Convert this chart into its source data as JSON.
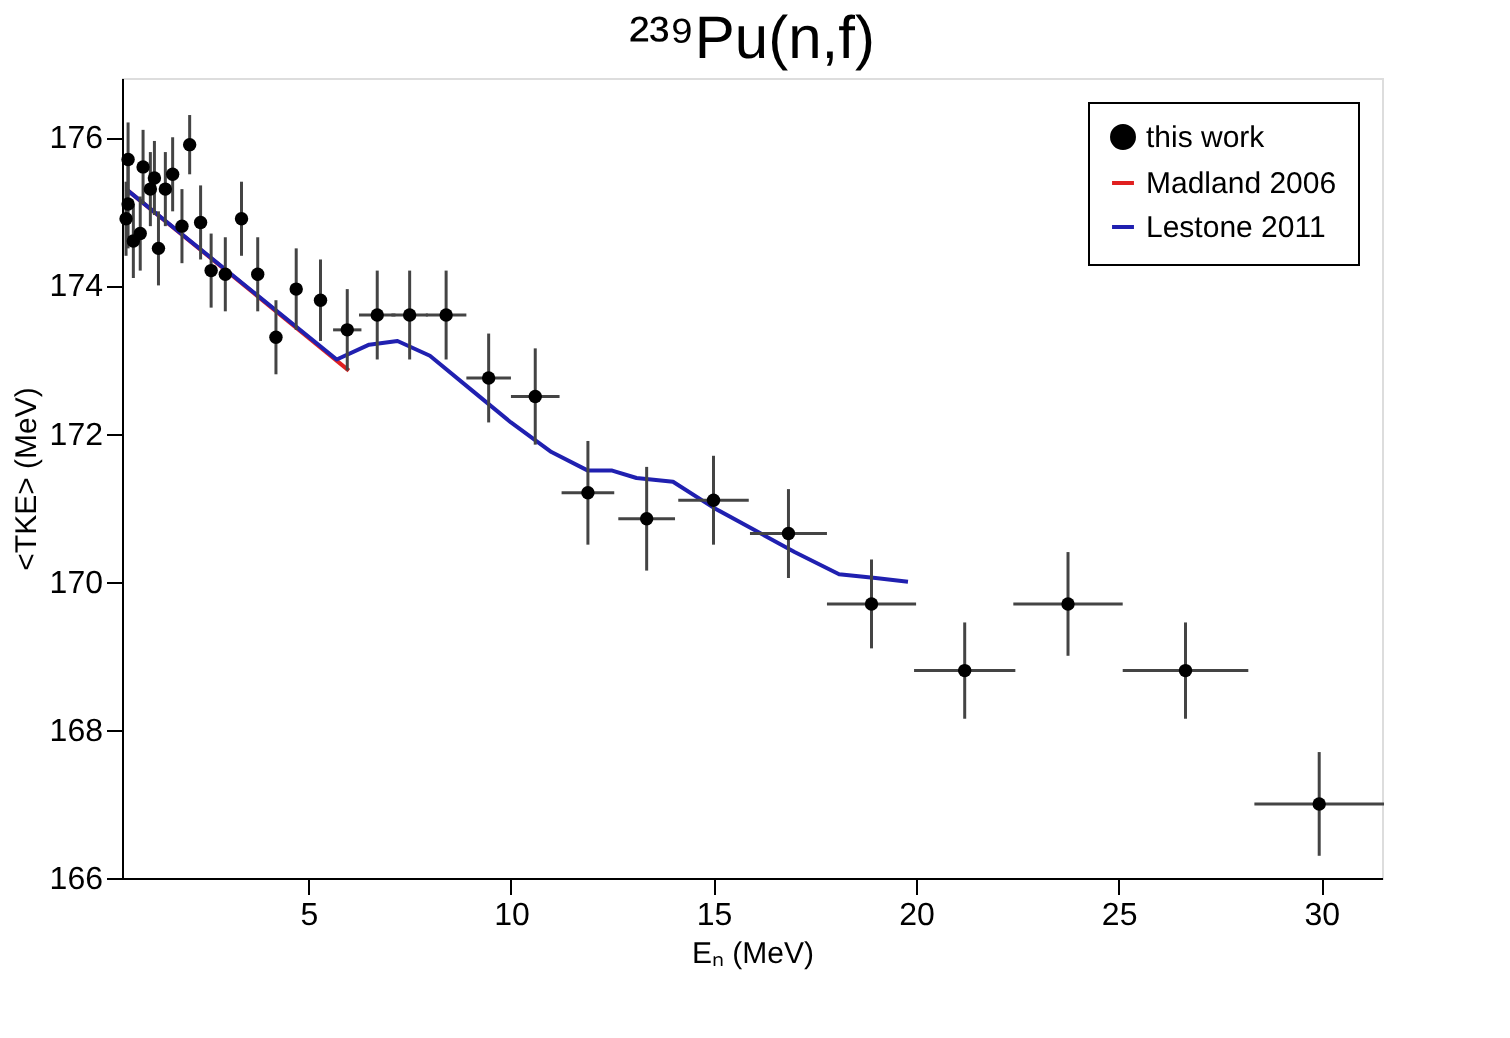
{
  "chart_data": {
    "type": "scatter",
    "title": "²³⁹Pu(n,f)",
    "xlabel": "Eₙ (MeV)",
    "ylabel": "<TKE> (MeV)",
    "xlim": [
      0.4,
      31.5
    ],
    "ylim": [
      166,
      176.8
    ],
    "xticks": [
      5,
      10,
      15,
      20,
      25,
      30
    ],
    "yticks": [
      166,
      168,
      170,
      172,
      174,
      176
    ],
    "grid": false,
    "legend": "top right",
    "series": [
      {
        "name": "this work",
        "marker": "circle",
        "color": "#000000",
        "x": [
          0.5,
          0.55,
          0.55,
          0.68,
          0.85,
          0.92,
          1.1,
          1.2,
          1.3,
          1.47,
          1.65,
          1.88,
          2.07,
          2.34,
          2.6,
          2.95,
          3.35,
          3.75,
          4.2,
          4.7,
          5.3,
          5.96,
          6.7,
          7.5,
          8.4,
          9.45,
          10.6,
          11.9,
          13.35,
          15.0,
          16.85,
          18.9,
          21.2,
          23.75,
          26.65,
          29.95
        ],
        "values": [
          174.9,
          175.7,
          175.1,
          174.6,
          174.7,
          175.6,
          175.3,
          175.45,
          174.5,
          175.3,
          175.5,
          174.8,
          175.9,
          174.85,
          174.2,
          174.15,
          174.9,
          174.15,
          173.3,
          173.95,
          173.8,
          173.4,
          173.6,
          173.6,
          173.6,
          172.75,
          172.5,
          171.2,
          170.85,
          171.1,
          170.65,
          169.7,
          168.8,
          169.7,
          168.8,
          167.0
        ],
        "errors": [
          0.5,
          0.5,
          0.6,
          0.5,
          0.5,
          0.5,
          0.5,
          0.5,
          0.5,
          0.5,
          0.5,
          0.5,
          0.4,
          0.5,
          0.5,
          0.5,
          0.5,
          0.5,
          0.5,
          0.55,
          0.55,
          0.55,
          0.6,
          0.6,
          0.6,
          0.6,
          0.65,
          0.7,
          0.7,
          0.6,
          0.6,
          0.6,
          0.65,
          0.7,
          0.65,
          0.7
        ],
        "xerrors": [
          null,
          null,
          null,
          null,
          null,
          null,
          null,
          null,
          null,
          null,
          null,
          null,
          null,
          null,
          null,
          null,
          null,
          null,
          null,
          null,
          null,
          0.35,
          0.45,
          0.45,
          0.5,
          0.55,
          0.6,
          0.65,
          0.7,
          0.87,
          0.95,
          1.1,
          1.25,
          1.35,
          1.55,
          1.6
        ]
      },
      {
        "name": "Madland 2006",
        "type": "line",
        "color": "#e02020",
        "x": [
          0.5,
          6.0
        ],
        "values": [
          175.3,
          172.85
        ]
      },
      {
        "name": "Lestone 2011",
        "type": "line",
        "color": "#2020b0",
        "x": [
          0.5,
          5.7,
          6.5,
          7.2,
          8.0,
          9.0,
          10.0,
          11.0,
          11.9,
          12.5,
          13.1,
          14.0,
          15.0,
          16.0,
          17.0,
          18.1,
          19.0,
          19.8
        ],
        "values": [
          175.3,
          173.0,
          173.2,
          173.25,
          173.05,
          172.6,
          172.15,
          171.75,
          171.5,
          171.5,
          171.4,
          171.35,
          171.0,
          170.7,
          170.4,
          170.1,
          170.05,
          170.0
        ]
      }
    ]
  }
}
